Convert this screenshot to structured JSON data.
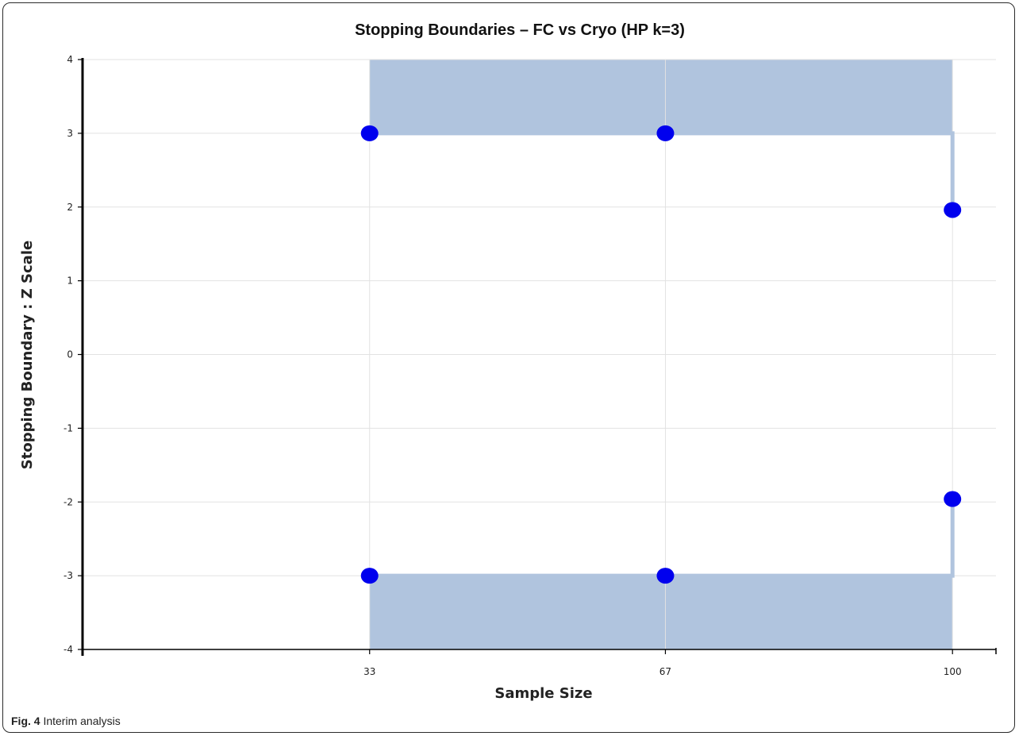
{
  "caption": {
    "label": "Fig. 4",
    "text": "Interim analysis"
  },
  "chart_data": {
    "type": "line",
    "title": "Stopping Boundaries – FC vs Cryo (HP k=3)",
    "xlabel": "Sample Size",
    "ylabel": "Stopping Boundary : Z Scale",
    "x": [
      33,
      67,
      100
    ],
    "xlim": [
      0,
      105
    ],
    "ylim": [
      -4,
      4
    ],
    "yticks": [
      4,
      3,
      2,
      1,
      0,
      -1,
      -2,
      -3,
      -4
    ],
    "xticks": [
      "33",
      "67",
      "100"
    ],
    "grid": true,
    "series": [
      {
        "values": [
          3,
          3,
          1.96
        ],
        "color": "#0000ee"
      },
      {
        "values": [
          -3,
          -3,
          -1.96
        ],
        "color": "#0000ee"
      }
    ],
    "region_color": "#b0c4de"
  }
}
